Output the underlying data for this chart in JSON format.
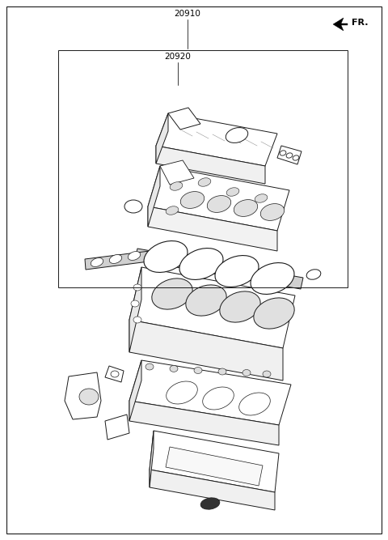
{
  "bg_color": "#ffffff",
  "line_color": "#1a1a1a",
  "label_20910": "20910",
  "label_20920": "20920",
  "label_FR": "FR.",
  "fig_w": 4.8,
  "fig_h": 6.67,
  "dpi": 100
}
